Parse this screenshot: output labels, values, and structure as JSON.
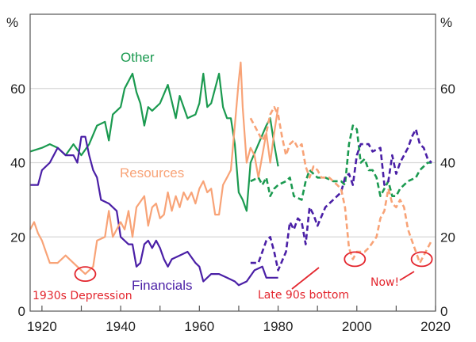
{
  "chart_data": {
    "type": "line",
    "title": "",
    "xlabel": "",
    "ylabel_left": "%",
    "ylabel_right": "%",
    "xlim": [
      1917,
      2020
    ],
    "ylim": [
      0,
      80
    ],
    "x_ticks": [
      1920,
      1940,
      1960,
      1980,
      2000,
      2020
    ],
    "y_ticks": [
      0,
      20,
      40,
      60
    ],
    "grid": "horizontal",
    "colors": {
      "other": "#1b9a50",
      "financials": "#4a1fa6",
      "resources": "#f8a377",
      "annotation": "#e3262e"
    },
    "series": [
      {
        "name": "Other",
        "key": "other",
        "style": "solid",
        "x": [
          1917,
          1920,
          1922,
          1924,
          1926,
          1928,
          1930,
          1932,
          1934,
          1936,
          1937,
          1938,
          1940,
          1941,
          1943,
          1944,
          1945,
          1946,
          1947,
          1948,
          1950,
          1952,
          1954,
          1955,
          1957,
          1959,
          1960,
          1961,
          1962,
          1963,
          1965,
          1966,
          1967,
          1968,
          1969,
          1970,
          1971,
          1972,
          1973,
          1975,
          1977,
          1978,
          1979,
          1980
        ],
        "y": [
          43,
          44,
          45,
          44,
          42,
          45,
          42,
          45,
          50,
          51,
          46,
          53,
          55,
          60,
          64,
          59,
          56,
          50,
          55,
          54,
          56,
          61,
          52,
          58,
          52,
          53,
          56,
          64,
          55,
          56,
          64,
          55,
          52,
          52,
          45,
          32,
          30,
          27,
          40,
          45,
          50,
          52,
          45,
          39
        ]
      },
      {
        "name": "Financials",
        "key": "financials",
        "style": "solid",
        "x": [
          1917,
          1919,
          1920,
          1922,
          1924,
          1926,
          1928,
          1929,
          1930,
          1931,
          1932,
          1933,
          1934,
          1935,
          1937,
          1939,
          1940,
          1942,
          1943,
          1944,
          1945,
          1946,
          1947,
          1948,
          1949,
          1950,
          1951,
          1952,
          1953,
          1955,
          1957,
          1959,
          1960,
          1961,
          1963,
          1965,
          1967,
          1969,
          1970,
          1972,
          1974,
          1976,
          1977,
          1980
        ],
        "y": [
          34,
          34,
          38,
          40,
          44,
          42,
          42,
          40,
          47,
          47,
          42,
          38,
          36,
          30,
          29,
          27,
          20,
          18,
          18,
          12,
          13,
          18,
          19,
          17,
          19,
          17,
          14,
          12,
          14,
          15,
          16,
          13,
          12,
          8,
          10,
          10,
          9,
          8,
          7,
          8,
          11,
          12,
          9,
          9
        ]
      },
      {
        "name": "Resources",
        "key": "resources",
        "style": "solid",
        "x": [
          1917,
          1918,
          1919,
          1920,
          1921,
          1922,
          1924,
          1926,
          1927,
          1929,
          1930,
          1931,
          1932,
          1933,
          1934,
          1936,
          1937,
          1938,
          1939,
          1940,
          1941,
          1942,
          1943,
          1944,
          1946,
          1947,
          1948,
          1949,
          1950,
          1951,
          1952,
          1953,
          1954,
          1955,
          1956,
          1957,
          1958,
          1959,
          1960,
          1961,
          1962,
          1963,
          1964,
          1965,
          1966,
          1967,
          1968,
          1969,
          1970,
          1970.5,
          1971,
          1972,
          1973,
          1974,
          1975,
          1976,
          1977,
          1978,
          1979,
          1980
        ],
        "y": [
          22,
          24,
          21,
          19,
          16,
          13,
          13,
          15,
          14,
          12,
          11,
          10,
          11,
          12,
          19,
          20,
          27,
          20,
          22,
          24,
          22,
          27,
          20,
          28,
          31,
          23,
          28,
          29,
          25,
          26,
          32,
          27,
          31,
          28,
          32,
          30,
          32,
          29,
          33,
          35,
          32,
          33,
          26,
          26,
          34,
          36,
          38,
          50,
          62,
          67,
          55,
          40,
          44,
          42,
          36,
          42,
          48,
          40,
          48,
          55
        ]
      },
      {
        "name": "Other",
        "key": "other",
        "style": "dashed",
        "x": [
          1973,
          1975,
          1976,
          1977,
          1978,
          1979,
          1980,
          1982,
          1983,
          1984,
          1986,
          1987,
          1988,
          1990,
          1992,
          1994,
          1996,
          1997,
          1998,
          1999,
          2000,
          2001,
          2002,
          2003,
          2004,
          2005,
          2006,
          2007,
          2008,
          2009,
          2010,
          2011,
          2013,
          2015,
          2016,
          2018,
          2019
        ],
        "y": [
          35,
          36,
          34,
          36,
          31,
          33,
          34,
          35,
          36,
          31,
          30,
          35,
          38,
          36,
          36,
          35,
          35,
          34,
          45,
          50,
          49,
          40,
          41,
          38,
          38,
          36,
          31,
          33,
          35,
          31,
          31,
          33,
          35,
          36,
          38,
          40,
          40
        ]
      },
      {
        "name": "Financials",
        "key": "financials",
        "style": "dashed",
        "x": [
          1973,
          1975,
          1977,
          1978,
          1979,
          1980,
          1982,
          1983,
          1984,
          1985,
          1986,
          1987,
          1988,
          1989,
          1990,
          1992,
          1994,
          1996,
          1997,
          1998,
          1999,
          2000,
          2001,
          2003,
          2004,
          2006,
          2007,
          2008,
          2009,
          2010,
          2011,
          2013,
          2014,
          2015,
          2016,
          2017,
          2018,
          2019
        ],
        "y": [
          13,
          13,
          19,
          20,
          16,
          11,
          16,
          24,
          22,
          25,
          24,
          18,
          28,
          26,
          23,
          28,
          30,
          32,
          36,
          37,
          34,
          42,
          45,
          45,
          43,
          44,
          34,
          35,
          42,
          37,
          40,
          44,
          47,
          49,
          45,
          44,
          41,
          40
        ]
      },
      {
        "name": "Resources",
        "key": "resources",
        "style": "dashed",
        "x": [
          1973,
          1974,
          1975,
          1976,
          1977,
          1978,
          1979,
          1980,
          1981,
          1982,
          1983,
          1984,
          1985,
          1986,
          1987,
          1988,
          1989,
          1990,
          1991,
          1993,
          1995,
          1996,
          1997,
          1998,
          1999,
          2000,
          2002,
          2003,
          2005,
          2006,
          2007,
          2008,
          2009,
          2010,
          2011,
          2012,
          2013,
          2014,
          2015,
          2016,
          2017,
          2018,
          2019
        ],
        "y": [
          52,
          50,
          48,
          46,
          48,
          53,
          55,
          53,
          47,
          42,
          45,
          46,
          44,
          45,
          39,
          36,
          39,
          38,
          36,
          36,
          34,
          33,
          28,
          17,
          14,
          16,
          16,
          17,
          20,
          25,
          27,
          33,
          29,
          28,
          30,
          28,
          22,
          19,
          16,
          13,
          15,
          17,
          19
        ]
      }
    ],
    "series_labels": {
      "other": "Other",
      "resources": "Resources",
      "financials": "Financials"
    },
    "annotations": [
      {
        "text": "1930s Depression",
        "x": 1931,
        "y": 10
      },
      {
        "text": "Late 90s bottom",
        "x": 1999.5,
        "y": 14
      },
      {
        "text": "Now!",
        "x": 2016.5,
        "y": 14
      }
    ]
  }
}
